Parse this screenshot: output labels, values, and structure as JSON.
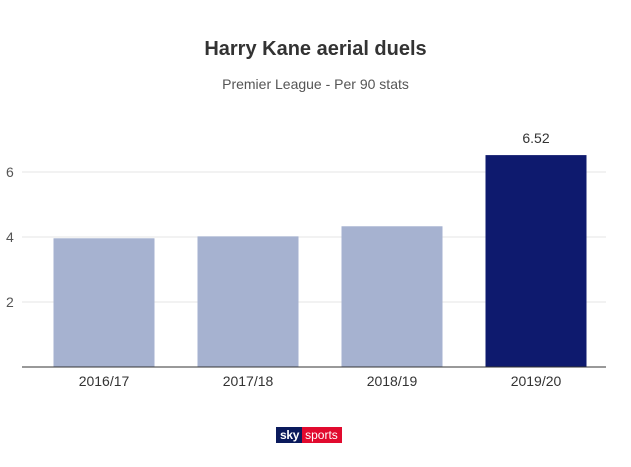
{
  "title": "Harry Kane aerial duels",
  "subtitle": "Premier League - Per 90 stats",
  "logo": {
    "sky": "sky",
    "sports": "sports"
  },
  "colors": {
    "bar": "#a6b2d0",
    "highlight": "#0e1a6e",
    "grid": "#e6e6e6",
    "axis": "#333333"
  },
  "chart_data": {
    "type": "bar",
    "title": "Harry Kane aerial duels",
    "subtitle": "Premier League - Per 90 stats",
    "categories": [
      "2016/17",
      "2017/18",
      "2018/19",
      "2019/20"
    ],
    "values": [
      3.96,
      4.02,
      4.33,
      6.52
    ],
    "highlight_index": 3,
    "data_labels": [
      null,
      null,
      null,
      "6.52"
    ],
    "yticks": [
      2,
      4,
      6
    ],
    "ylim": [
      0,
      7.5
    ],
    "grid": true,
    "legend": "none"
  }
}
